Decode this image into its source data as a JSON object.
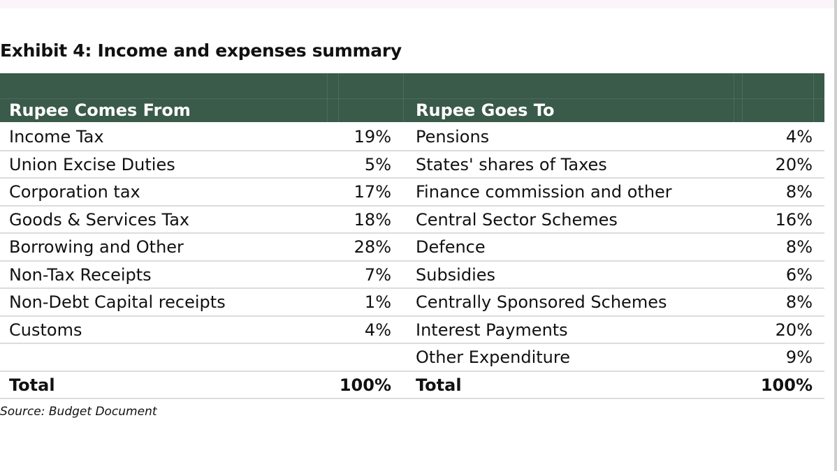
{
  "title": "Exhibit 4: Income and expenses summary",
  "headers": {
    "comes_from": "Rupee Comes From",
    "goes_to": "Rupee Goes To"
  },
  "rows": [
    {
      "from": "Income Tax",
      "from_pct": "19%",
      "to": "Pensions",
      "to_pct": "4%"
    },
    {
      "from": "Union Excise Duties",
      "from_pct": "5%",
      "to": "States' shares of Taxes",
      "to_pct": "20%"
    },
    {
      "from": "Corporation tax",
      "from_pct": "17%",
      "to": "Finance commission and other",
      "to_pct": "8%"
    },
    {
      "from": "Goods & Services Tax",
      "from_pct": "18%",
      "to": "Central Sector Schemes",
      "to_pct": "16%"
    },
    {
      "from": "Borrowing and Other",
      "from_pct": "28%",
      "to": "Defence",
      "to_pct": "8%"
    },
    {
      "from": "Non-Tax Receipts",
      "from_pct": "7%",
      "to": "Subsidies",
      "to_pct": "6%"
    },
    {
      "from": "Non-Debt Capital receipts",
      "from_pct": "1%",
      "to": "Centrally Sponsored Schemes",
      "to_pct": "8%"
    },
    {
      "from": "Customs",
      "from_pct": "4%",
      "to": "Interest Payments",
      "to_pct": "20%"
    },
    {
      "from": "",
      "from_pct": "",
      "to": "Other Expenditure",
      "to_pct": "9%"
    }
  ],
  "total": {
    "from_label": "Total",
    "from_pct": "100%",
    "to_label": "Total",
    "to_pct": "100%"
  },
  "source": "Source: Budget Document",
  "colors": {
    "header_bg": "#3a5a4a",
    "header_text": "#ffffff",
    "row_divider": "#dcdcdc"
  }
}
